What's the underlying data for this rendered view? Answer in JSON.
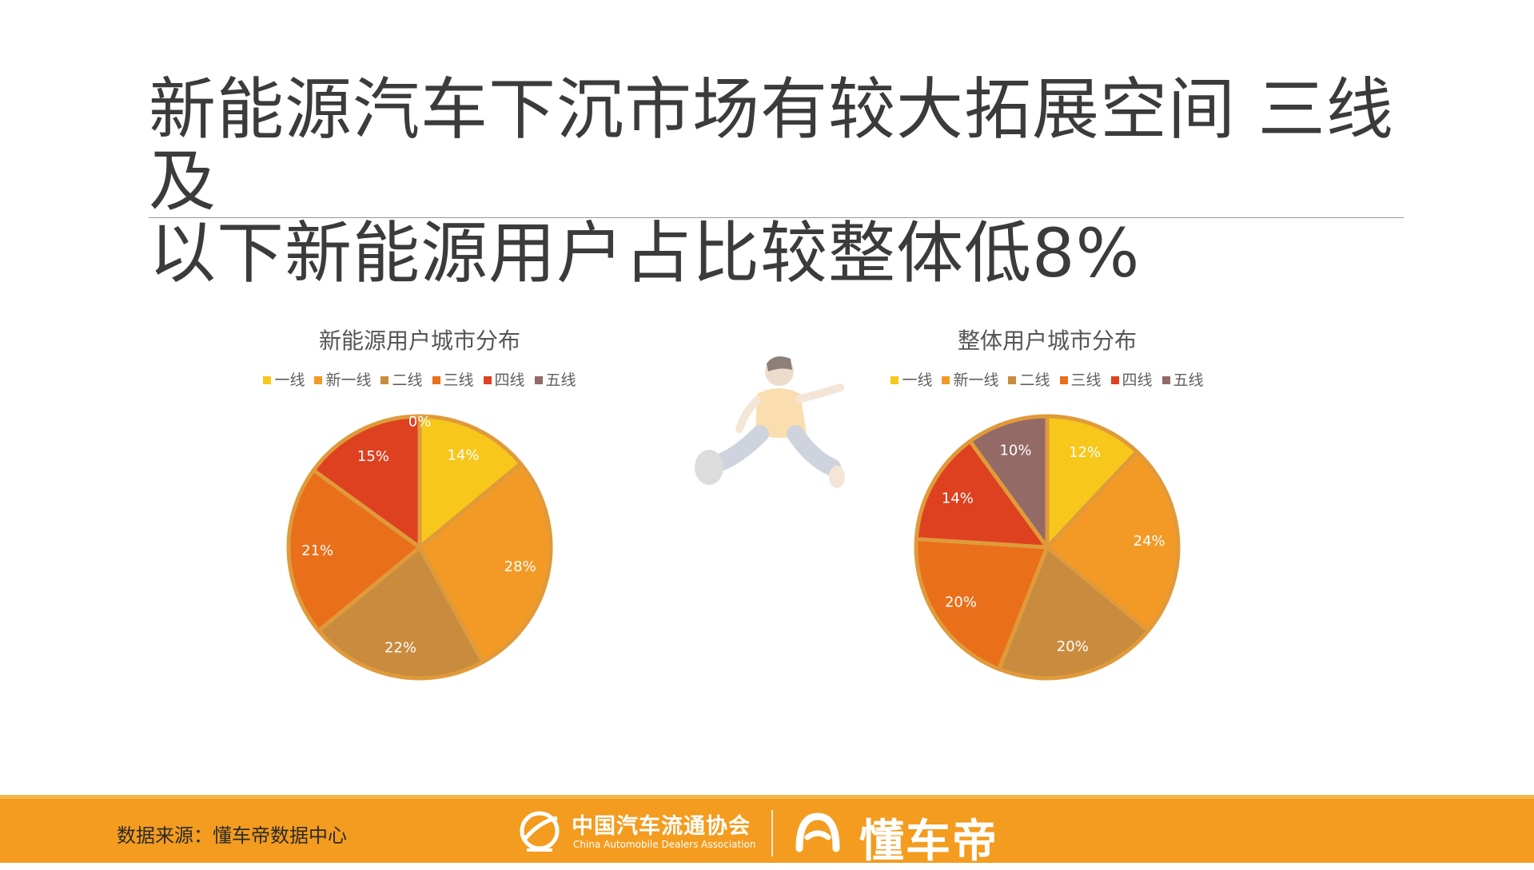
{
  "page": {
    "title_line1": "新能源汽车下沉市场有较大拓展空间 三线及",
    "title_line2": "以下新能源用户占比较整体低8%"
  },
  "chart_data": [
    {
      "type": "pie",
      "title": "新能源用户城市分布",
      "categories": [
        "一线",
        "新一线",
        "二线",
        "三线",
        "四线",
        "五线"
      ],
      "values": [
        14,
        28,
        22,
        21,
        15,
        0
      ],
      "labels": [
        "14%",
        "28%",
        "22%",
        "21%",
        "15%",
        "0%"
      ],
      "colors": [
        "#f7c71c",
        "#f39a26",
        "#c98c3e",
        "#ea6f1a",
        "#de4120",
        "#936a66"
      ],
      "legend_position": "top"
    },
    {
      "type": "pie",
      "title": "整体用户城市分布",
      "categories": [
        "一线",
        "新一线",
        "二线",
        "三线",
        "四线",
        "五线"
      ],
      "values": [
        12,
        24,
        20,
        20,
        14,
        10
      ],
      "labels": [
        "12%",
        "24%",
        "20%",
        "20%",
        "14%",
        "10%"
      ],
      "colors": [
        "#f7c71c",
        "#f39a26",
        "#c98c3e",
        "#ea6f1a",
        "#de4120",
        "#936a66"
      ],
      "legend_position": "top"
    }
  ],
  "footer": {
    "source": "数据来源：懂车帝数据中心",
    "org_name_cn": "中国汽车流通协会",
    "org_name_en": "China Automobile Dealers Association",
    "brand_name": "懂车帝"
  }
}
